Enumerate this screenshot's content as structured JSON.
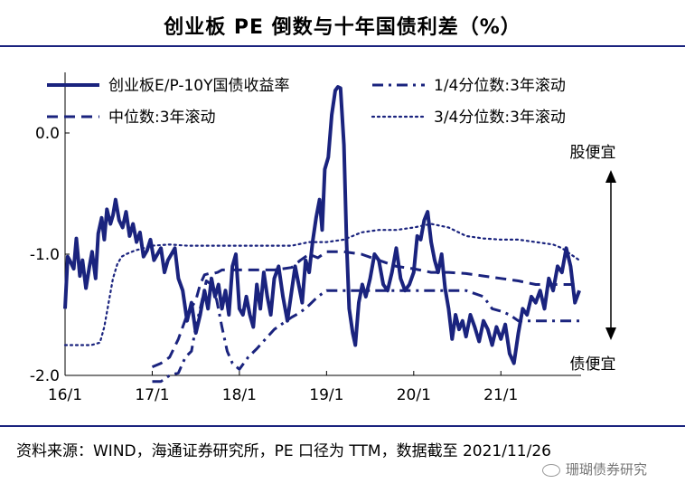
{
  "title": "创业板 PE 倒数与十年国债利差（%）",
  "source": "资料来源：WIND，海通证券研究所，PE 口径为 TTM，数据截至 2021/11/26",
  "watermark": "珊瑚债券研究",
  "colors": {
    "line": "#1a237e",
    "axis": "#000000"
  },
  "annotations": {
    "top": "股便宜",
    "bottom": "债便宜"
  },
  "chart_data": {
    "type": "line",
    "title": "创业板 PE 倒数与十年国债利差（%）",
    "xlabel": "",
    "ylabel": "",
    "xlim": [
      2016.0,
      2021.92
    ],
    "ylim": [
      -2.0,
      0.5
    ],
    "x_ticks": [
      {
        "x": 2016.0,
        "label": "16/1"
      },
      {
        "x": 2017.0,
        "label": "17/1"
      },
      {
        "x": 2018.0,
        "label": "18/1"
      },
      {
        "x": 2019.0,
        "label": "19/1"
      },
      {
        "x": 2020.0,
        "label": "20/1"
      },
      {
        "x": 2021.0,
        "label": "21/1"
      }
    ],
    "y_ticks": [
      {
        "y": 0.0,
        "label": "0.0"
      },
      {
        "y": -1.0,
        "label": "-1.0"
      },
      {
        "y": -2.0,
        "label": "-2.0"
      }
    ],
    "legend": [
      "创业板E/P-10Y国债收益率",
      "1/4分位数:3年滚动",
      "中位数:3年滚动",
      "3/4分位数:3年滚动"
    ],
    "series": [
      {
        "name": "创业板E/P-10Y国债收益率",
        "style": "solid",
        "x": [
          2016.0,
          2016.03,
          2016.06,
          2016.1,
          2016.13,
          2016.17,
          2016.2,
          2016.24,
          2016.28,
          2016.31,
          2016.35,
          2016.38,
          2016.42,
          2016.45,
          2016.48,
          2016.52,
          2016.55,
          2016.58,
          2016.62,
          2016.66,
          2016.7,
          2016.74,
          2016.78,
          2016.82,
          2016.86,
          2016.9,
          2016.94,
          2016.98,
          2017.02,
          2017.06,
          2017.1,
          2017.14,
          2017.18,
          2017.22,
          2017.26,
          2017.3,
          2017.35,
          2017.4,
          2017.45,
          2017.5,
          2017.55,
          2017.6,
          2017.64,
          2017.68,
          2017.72,
          2017.76,
          2017.8,
          2017.84,
          2017.88,
          2017.92,
          2017.96,
          2018.0,
          2018.04,
          2018.08,
          2018.12,
          2018.16,
          2018.2,
          2018.24,
          2018.28,
          2018.32,
          2018.36,
          2018.4,
          2018.45,
          2018.5,
          2018.55,
          2018.6,
          2018.64,
          2018.68,
          2018.72,
          2018.76,
          2018.8,
          2018.84,
          2018.88,
          2018.92,
          2018.95,
          2018.98,
          2019.02,
          2019.06,
          2019.1,
          2019.13,
          2019.16,
          2019.2,
          2019.23,
          2019.26,
          2019.3,
          2019.33,
          2019.37,
          2019.41,
          2019.45,
          2019.5,
          2019.55,
          2019.6,
          2019.65,
          2019.7,
          2019.75,
          2019.8,
          2019.85,
          2019.9,
          2019.95,
          2020.0,
          2020.04,
          2020.08,
          2020.12,
          2020.16,
          2020.2,
          2020.24,
          2020.28,
          2020.32,
          2020.36,
          2020.4,
          2020.44,
          2020.48,
          2020.52,
          2020.56,
          2020.6,
          2020.65,
          2020.7,
          2020.75,
          2020.8,
          2020.85,
          2020.9,
          2020.95,
          2021.0,
          2021.05,
          2021.1,
          2021.15,
          2021.2,
          2021.25,
          2021.3,
          2021.35,
          2021.4,
          2021.45,
          2021.5,
          2021.55,
          2021.6,
          2021.65,
          2021.7,
          2021.75,
          2021.8,
          2021.85,
          2021.9
        ],
        "y": [
          -1.45,
          -1.02,
          -1.06,
          -1.12,
          -0.87,
          -1.18,
          -1.05,
          -1.28,
          -1.1,
          -0.98,
          -1.2,
          -0.83,
          -0.7,
          -0.88,
          -0.63,
          -0.75,
          -0.68,
          -0.55,
          -0.72,
          -0.78,
          -0.65,
          -0.85,
          -0.75,
          -0.9,
          -0.82,
          -1.02,
          -0.97,
          -0.88,
          -1.05,
          -1.0,
          -0.95,
          -1.15,
          -1.05,
          -1.0,
          -0.95,
          -1.2,
          -1.3,
          -1.55,
          -1.4,
          -1.65,
          -1.5,
          -1.3,
          -1.45,
          -1.2,
          -1.35,
          -1.25,
          -1.45,
          -1.3,
          -1.5,
          -1.1,
          -1.0,
          -1.45,
          -1.5,
          -1.35,
          -1.5,
          -1.6,
          -1.25,
          -1.45,
          -1.15,
          -1.35,
          -1.5,
          -1.2,
          -1.1,
          -1.35,
          -1.55,
          -1.3,
          -1.1,
          -1.25,
          -1.4,
          -1.05,
          -1.15,
          -0.9,
          -0.7,
          -0.55,
          -0.8,
          -0.3,
          -0.2,
          0.15,
          0.35,
          0.38,
          0.37,
          -0.1,
          -0.9,
          -1.45,
          -1.65,
          -1.75,
          -1.4,
          -1.25,
          -1.35,
          -1.2,
          -1.0,
          -1.05,
          -1.25,
          -1.3,
          -1.15,
          -0.95,
          -1.2,
          -1.3,
          -1.25,
          -1.15,
          -0.85,
          -0.88,
          -0.72,
          -0.65,
          -0.9,
          -1.05,
          -1.15,
          -1.0,
          -1.28,
          -1.45,
          -1.7,
          -1.5,
          -1.62,
          -1.55,
          -1.68,
          -1.5,
          -1.6,
          -1.72,
          -1.55,
          -1.62,
          -1.75,
          -1.6,
          -1.7,
          -1.58,
          -1.82,
          -1.9,
          -1.65,
          -1.45,
          -1.5,
          -1.35,
          -1.4,
          -1.3,
          -1.45,
          -1.2,
          -1.3,
          -1.1,
          -1.15,
          -0.95,
          -1.1,
          -1.4,
          -1.3
        ]
      },
      {
        "name": "1/4分位数:3年滚动",
        "style": "dashdot",
        "x": [
          2017.0,
          2017.1,
          2017.2,
          2017.3,
          2017.38,
          2017.45,
          2017.5,
          2017.55,
          2017.62,
          2017.68,
          2017.74,
          2017.8,
          2017.86,
          2017.92,
          2018.0,
          2018.1,
          2018.2,
          2018.3,
          2018.4,
          2018.5,
          2018.6,
          2018.7,
          2018.8,
          2018.9,
          2019.0,
          2019.2,
          2019.4,
          2019.6,
          2019.8,
          2020.0,
          2020.2,
          2020.4,
          2020.6,
          2020.8,
          2020.9,
          2021.0,
          2021.1,
          2021.2,
          2021.4,
          2021.6,
          2021.8,
          2021.9
        ],
        "y": [
          -2.05,
          -2.05,
          -2.0,
          -1.98,
          -1.85,
          -1.8,
          -1.6,
          -1.45,
          -1.22,
          -1.25,
          -1.38,
          -1.6,
          -1.8,
          -1.9,
          -1.95,
          -1.85,
          -1.78,
          -1.7,
          -1.62,
          -1.57,
          -1.52,
          -1.48,
          -1.42,
          -1.35,
          -1.3,
          -1.3,
          -1.3,
          -1.3,
          -1.3,
          -1.3,
          -1.3,
          -1.3,
          -1.3,
          -1.35,
          -1.45,
          -1.47,
          -1.5,
          -1.55,
          -1.55,
          -1.55,
          -1.55,
          -1.55
        ]
      },
      {
        "name": "中位数:3年滚动",
        "style": "dashed",
        "x": [
          2017.0,
          2017.1,
          2017.2,
          2017.3,
          2017.4,
          2017.5,
          2017.55,
          2017.6,
          2017.65,
          2017.7,
          2017.75,
          2017.8,
          2018.0,
          2018.2,
          2018.4,
          2018.5,
          2018.6,
          2018.7,
          2018.8,
          2018.9,
          2019.0,
          2019.2,
          2019.4,
          2019.6,
          2019.8,
          2020.0,
          2020.2,
          2020.4,
          2020.6,
          2020.8,
          2021.0,
          2021.2,
          2021.4,
          2021.6,
          2021.8,
          2021.9
        ],
        "y": [
          -1.93,
          -1.9,
          -1.85,
          -1.7,
          -1.5,
          -1.38,
          -1.25,
          -1.17,
          -1.16,
          -1.16,
          -1.15,
          -1.13,
          -1.13,
          -1.13,
          -1.13,
          -1.12,
          -1.11,
          -1.05,
          -1.0,
          -1.03,
          -0.98,
          -0.98,
          -1.0,
          -1.05,
          -1.1,
          -1.12,
          -1.15,
          -1.15,
          -1.16,
          -1.18,
          -1.2,
          -1.22,
          -1.25,
          -1.25,
          -1.25,
          -1.25
        ]
      },
      {
        "name": "3/4分位数:3年滚动",
        "style": "dotted",
        "x": [
          2016.0,
          2016.1,
          2016.2,
          2016.3,
          2016.4,
          2016.45,
          2016.5,
          2016.55,
          2016.6,
          2016.65,
          2016.7,
          2016.8,
          2016.9,
          2017.0,
          2017.2,
          2017.4,
          2017.6,
          2017.8,
          2018.0,
          2018.2,
          2018.4,
          2018.6,
          2018.8,
          2019.0,
          2019.2,
          2019.4,
          2019.6,
          2019.8,
          2020.0,
          2020.2,
          2020.4,
          2020.6,
          2020.8,
          2021.0,
          2021.2,
          2021.4,
          2021.6,
          2021.7,
          2021.8,
          2021.9
        ],
        "y": [
          -1.75,
          -1.75,
          -1.75,
          -1.75,
          -1.73,
          -1.6,
          -1.4,
          -1.2,
          -1.08,
          -1.02,
          -1.0,
          -0.97,
          -0.95,
          -0.93,
          -0.92,
          -0.93,
          -0.93,
          -0.93,
          -0.93,
          -0.93,
          -0.93,
          -0.93,
          -0.9,
          -0.9,
          -0.88,
          -0.82,
          -0.8,
          -0.8,
          -0.78,
          -0.75,
          -0.78,
          -0.85,
          -0.87,
          -0.88,
          -0.88,
          -0.9,
          -0.92,
          -0.95,
          -1.0,
          -1.05
        ]
      }
    ]
  }
}
